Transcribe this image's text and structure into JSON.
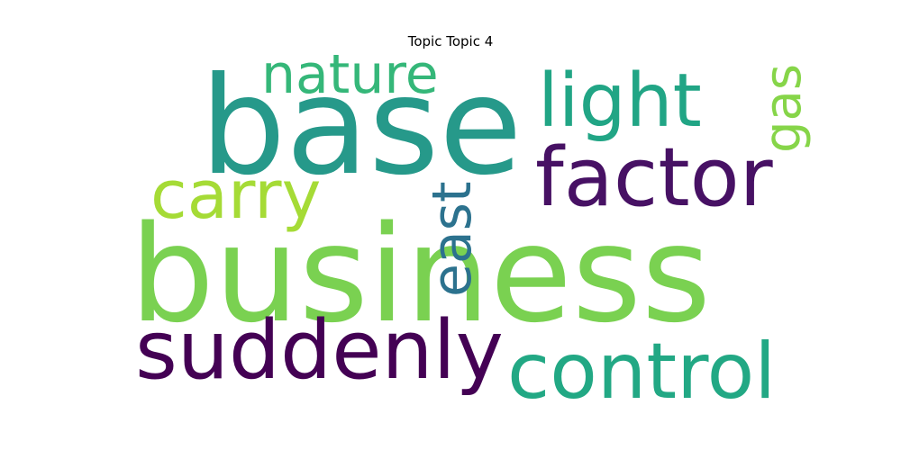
{
  "chart_data": {
    "type": "wordcloud",
    "title": "Topic Topic 4",
    "words": [
      {
        "text": "business",
        "color": "#7ad151"
      },
      {
        "text": "base",
        "color": "#26998a"
      },
      {
        "text": "suddenly",
        "color": "#440154"
      },
      {
        "text": "control",
        "color": "#22a884"
      },
      {
        "text": "factor",
        "color": "#471164"
      },
      {
        "text": "light",
        "color": "#21a585"
      },
      {
        "text": "carry",
        "color": "#a5db36"
      },
      {
        "text": "nature",
        "color": "#35b779"
      },
      {
        "text": "east",
        "color": "#2c728e"
      },
      {
        "text": "gas",
        "color": "#86d549"
      }
    ]
  }
}
